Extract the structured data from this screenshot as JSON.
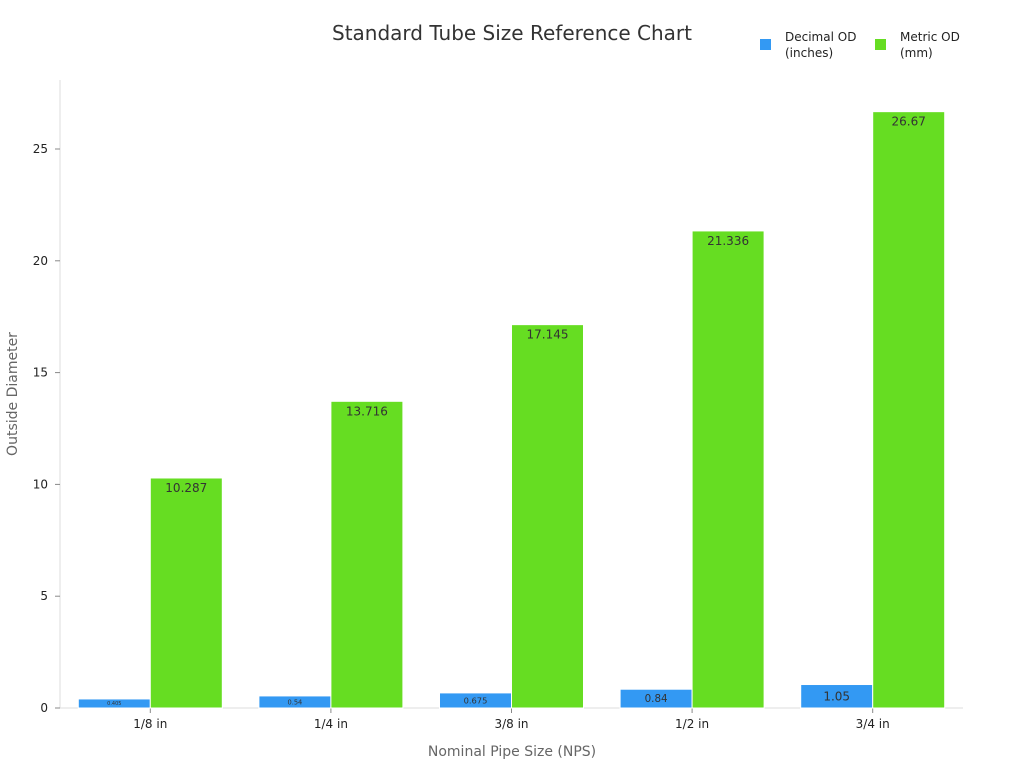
{
  "chart_data": {
    "type": "bar",
    "title": "Standard Tube Size Reference Chart",
    "xlabel": "Nominal Pipe Size (NPS)",
    "ylabel": "Outside Diameter",
    "categories": [
      "1/8 in",
      "1/4 in",
      "3/8 in",
      "1/2 in",
      "3/4 in"
    ],
    "series": [
      {
        "name": "Decimal OD (inches)",
        "legend_lines": [
          "Decimal OD",
          "(inches)"
        ],
        "color": "#3399f3",
        "values": [
          0.405,
          0.54,
          0.675,
          0.84,
          1.05
        ],
        "labels": [
          "0.405",
          "0.54",
          "0.675",
          "0.84",
          "1.05"
        ]
      },
      {
        "name": "Metric OD (mm)",
        "legend_lines": [
          "Metric OD",
          "(mm)"
        ],
        "color": "#66dd22",
        "values": [
          10.287,
          13.716,
          17.145,
          21.336,
          26.67
        ],
        "labels": [
          "10.287",
          "13.716",
          "17.145",
          "21.336",
          "26.67"
        ]
      }
    ],
    "yticks": [
      0,
      5,
      10,
      15,
      20,
      25
    ],
    "ylim": [
      0,
      28
    ],
    "grid": false,
    "legend_position": "top-right"
  }
}
